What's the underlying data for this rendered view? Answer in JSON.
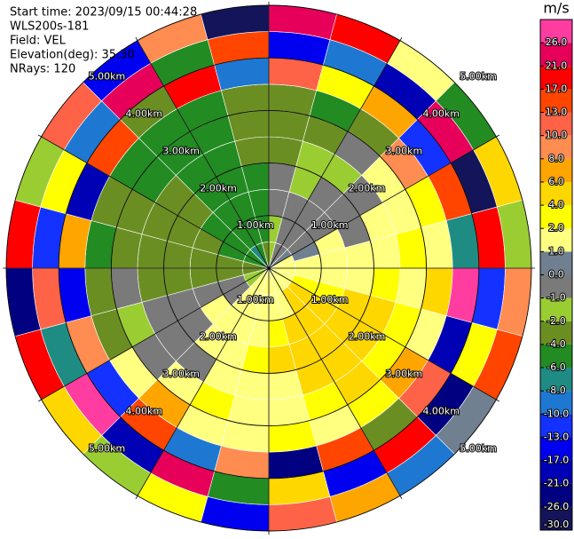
{
  "chart_data": {
    "type": "ppi",
    "header": [
      "Start time: 2023/09/15 00:44:28",
      "WLS200s-181",
      "Field: VEL",
      "Elevation(deg): 35.30",
      "NRays: 120"
    ],
    "unit": "m/s",
    "rlim": [
      0,
      5
    ],
    "ring_ticks": [
      {
        "value": 1,
        "label": "1.00km"
      },
      {
        "value": 2,
        "label": "2.00km"
      },
      {
        "value": 3,
        "label": "3.00km"
      },
      {
        "value": 4,
        "label": "4.00km"
      },
      {
        "value": 5,
        "label": "5.00km"
      }
    ],
    "clim": [
      -30,
      30
    ],
    "cticks": [
      {
        "value": -30,
        "label": "-30.0"
      },
      {
        "value": -26,
        "label": "-26.0"
      },
      {
        "value": -21,
        "label": "-21.0"
      },
      {
        "value": -17,
        "label": "-17.0"
      },
      {
        "value": -13,
        "label": "-13.0"
      },
      {
        "value": -10,
        "label": "-10.0"
      },
      {
        "value": -8,
        "label": "-8.0"
      },
      {
        "value": -6,
        "label": "-6.0"
      },
      {
        "value": -4,
        "label": "-4.0"
      },
      {
        "value": -2,
        "label": "-2.0"
      },
      {
        "value": -1,
        "label": "-1.0"
      },
      {
        "value": 0,
        "label": "0.0"
      },
      {
        "value": 1,
        "label": "1.0"
      },
      {
        "value": 2,
        "label": "2.0"
      },
      {
        "value": 4,
        "label": "4.0"
      },
      {
        "value": 6,
        "label": "6.0"
      },
      {
        "value": 8,
        "label": "8.0"
      },
      {
        "value": 10,
        "label": "10.0"
      },
      {
        "value": 13,
        "label": "13.0"
      },
      {
        "value": 17,
        "label": "17.0"
      },
      {
        "value": 21,
        "label": "21.0"
      },
      {
        "value": 26,
        "label": "26.0"
      }
    ],
    "colors": [
      "#14145a",
      "#000080",
      "#0000b4",
      "#0000f0",
      "#1432ff",
      "#1e78d2",
      "#1e8c82",
      "#228b22",
      "#6b8e23",
      "#9acd32",
      "#7a7a7a",
      "#708090",
      "#ffff80",
      "#ffff00",
      "#ffd700",
      "#ffa500",
      "#ff8c50",
      "#ff6347",
      "#ff4500",
      "#ff0000",
      "#e6005a",
      "#ff3ca0"
    ],
    "field": {
      "values": [
        [
          -1.5,
          -1.5,
          -0.5,
          -0.5,
          -2.5,
          -3,
          -3,
          12,
          -15,
          22
        ],
        [
          -0.5,
          -0.5,
          -0.5,
          -1.5,
          -1.5,
          -3,
          -5,
          3,
          -9,
          18
        ],
        [
          -0.5,
          -0.5,
          -0.5,
          -0.5,
          -1.5,
          -0.5,
          -3,
          7,
          -20,
          1.5
        ],
        [
          0.5,
          -0.5,
          -0.5,
          -0.5,
          -0.5,
          1.5,
          9,
          -12,
          25,
          -5
        ],
        [
          1.5,
          0.5,
          1.5,
          -0.5,
          1.5,
          1.5,
          3,
          15,
          -28,
          5
        ],
        [
          1.5,
          1.5,
          1.5,
          1.5,
          1.5,
          3,
          1.5,
          -7,
          19,
          -1.5
        ],
        [
          1.5,
          1.5,
          1.5,
          1.5,
          3,
          1.5,
          5,
          27,
          -11,
          9
        ],
        [
          1.5,
          3,
          3,
          5,
          5,
          3,
          1.5,
          -18,
          3,
          14
        ],
        [
          1.5,
          5,
          5,
          5,
          5,
          3,
          7,
          11,
          -24,
          0.5
        ],
        [
          1.5,
          5,
          5,
          5,
          5,
          5,
          3,
          -3,
          20,
          -9
        ],
        [
          1.5,
          1.5,
          5,
          5,
          5,
          3,
          1.5,
          16,
          -14,
          7
        ],
        [
          1.5,
          1.5,
          3,
          5,
          1.5,
          1.5,
          3,
          -22,
          5,
          12
        ],
        [
          1.5,
          1.5,
          1.5,
          3,
          1.5,
          1.5,
          1.5,
          9,
          -5,
          -16
        ],
        [
          1.5,
          1.5,
          1.5,
          1.5,
          1.5,
          3,
          1.5,
          -9,
          23,
          3
        ],
        [
          1.5,
          1.5,
          1.5,
          1.5,
          -0.5,
          1.5,
          7,
          15,
          -19,
          -1.5
        ],
        [
          -1.5,
          -0.5,
          1.5,
          -0.5,
          -0.5,
          -0.5,
          1.5,
          -12,
          27,
          5
        ],
        [
          -1.5,
          -0.5,
          -0.5,
          -0.5,
          -0.5,
          -1.5,
          -3,
          9,
          -7,
          18
        ],
        [
          -3,
          -3,
          -3,
          -3,
          -3,
          -0.5,
          -3,
          -15,
          12,
          -25
        ],
        [
          -3,
          -3,
          -3,
          -3,
          -3,
          -3,
          -5,
          7,
          -11,
          20
        ],
        [
          -5,
          -5,
          -3,
          -3,
          -3,
          -3,
          -3,
          -20,
          3,
          -1.5
        ],
        [
          -5,
          -5,
          -5,
          -3,
          -3,
          -5,
          -5,
          14,
          -9,
          11
        ],
        [
          -7,
          -5,
          -5,
          -5,
          -5,
          -5,
          -5,
          -3,
          25,
          -17
        ],
        [
          -5,
          -5,
          -5,
          -5,
          -5,
          -5,
          -5,
          18,
          -5,
          9
        ],
        [
          -3,
          -5,
          -5,
          -5,
          -3,
          -3,
          -3,
          -9,
          15,
          -28
        ]
      ]
    }
  }
}
